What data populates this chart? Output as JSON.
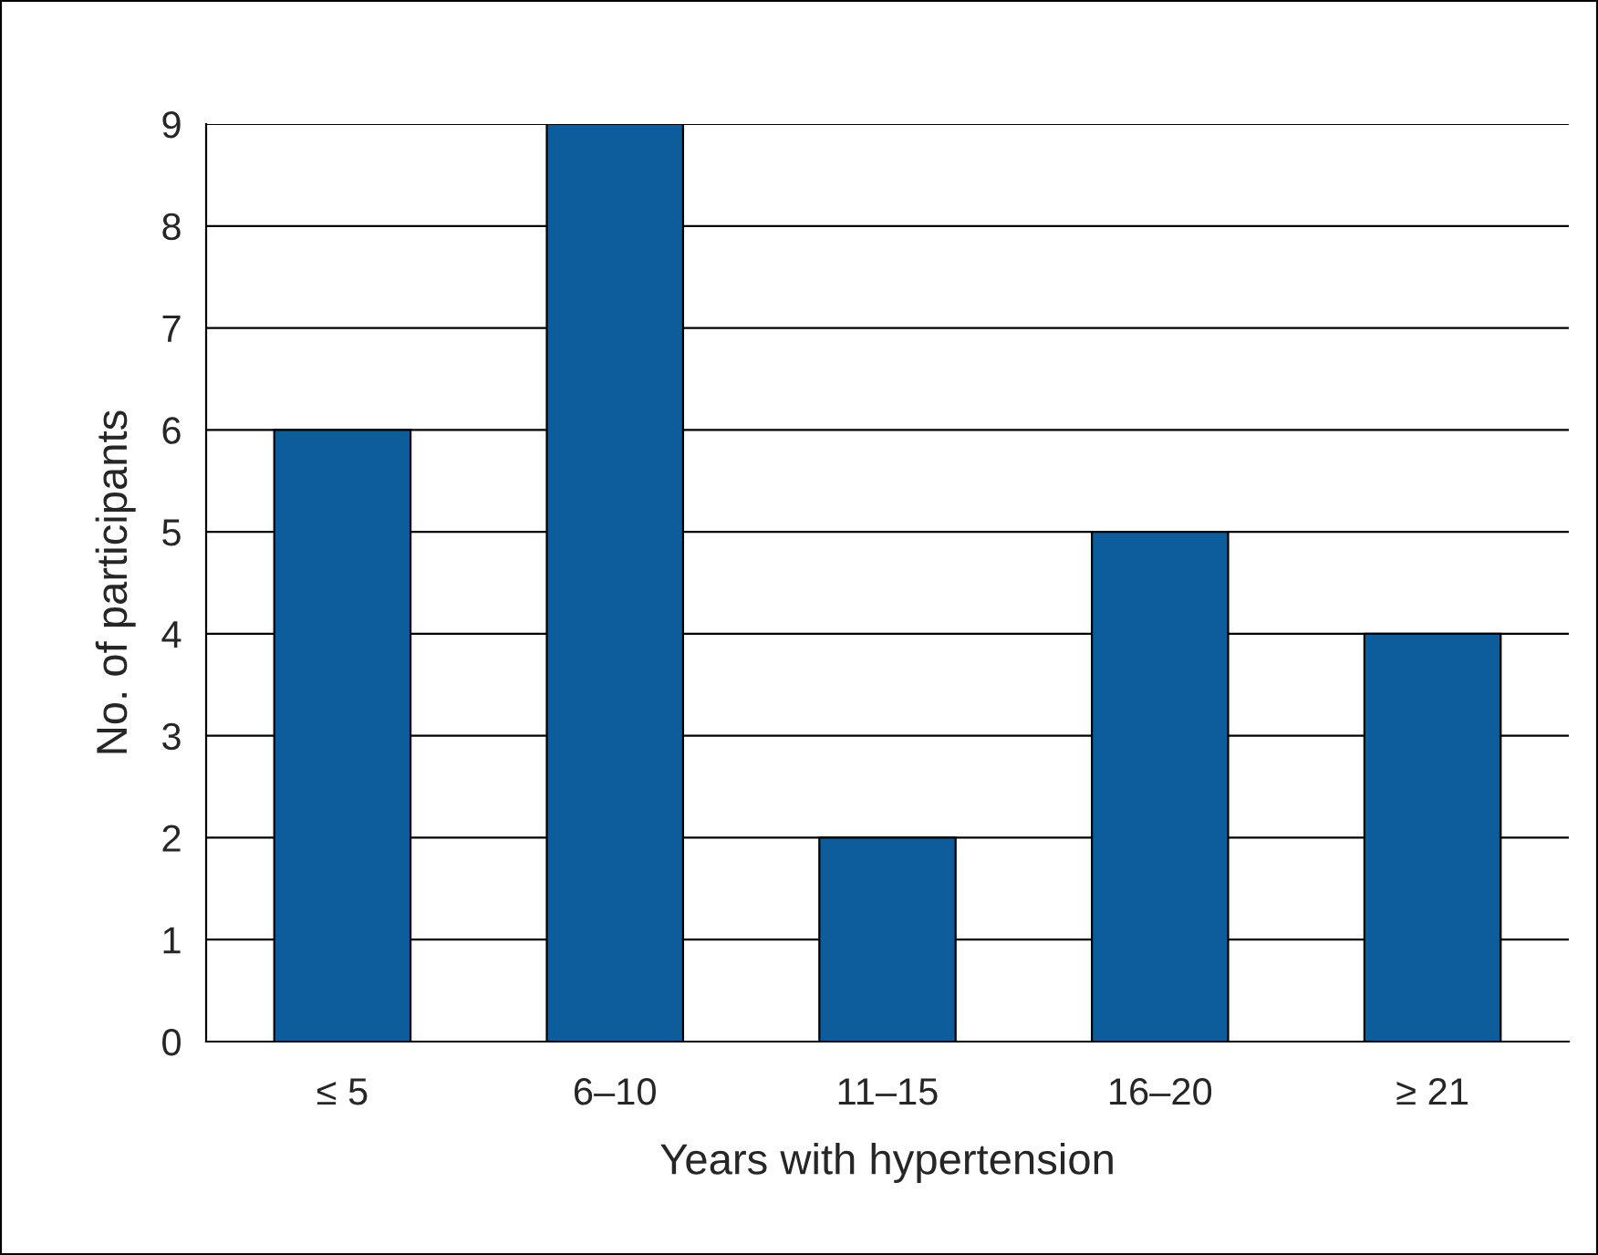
{
  "chart_data": {
    "type": "bar",
    "xlabel": "Years with hypertension",
    "ylabel": "No. of participants",
    "categories": [
      "≤ 5",
      "6–10",
      "11–15",
      "16–20",
      "≥ 21"
    ],
    "values": [
      6,
      9,
      2,
      5,
      4
    ],
    "color": "#0d5c9b",
    "ylim": [
      0,
      9
    ],
    "yticks": [
      0,
      1,
      2,
      3,
      4,
      5,
      6,
      7,
      8,
      9
    ],
    "grid": "y"
  }
}
